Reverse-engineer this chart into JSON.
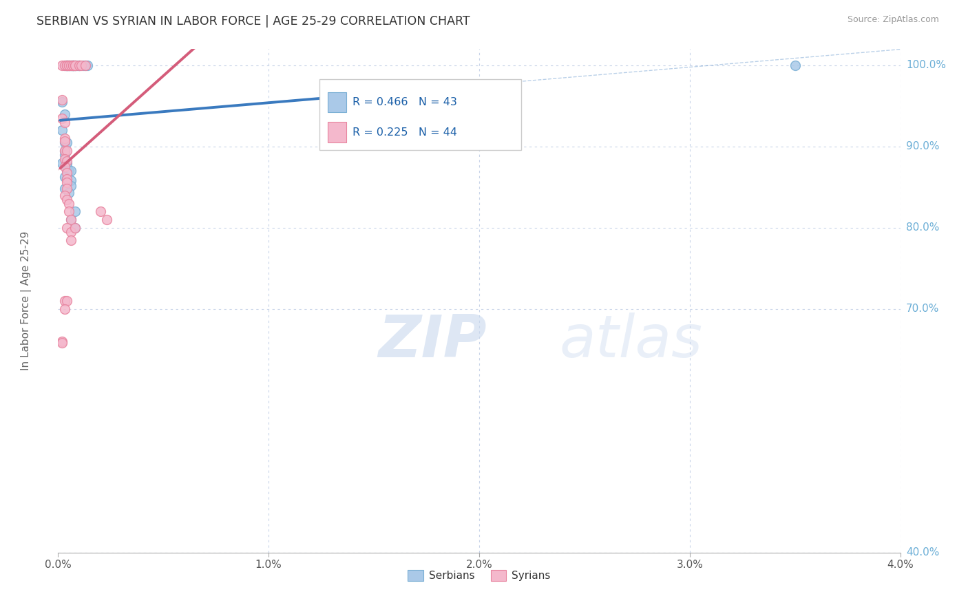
{
  "title": "SERBIAN VS SYRIAN IN LABOR FORCE | AGE 25-29 CORRELATION CHART",
  "ylabel": "In Labor Force | Age 25-29",
  "source": "Source: ZipAtlas.com",
  "xlim": [
    0.0,
    0.04
  ],
  "ylim": [
    0.4,
    1.02
  ],
  "xticks": [
    0.0,
    0.01,
    0.02,
    0.03,
    0.04
  ],
  "xtick_labels": [
    "0.0%",
    "1.0%",
    "2.0%",
    "3.0%",
    "4.0%"
  ],
  "ytick_labels_right": [
    "100.0%",
    "90.0%",
    "80.0%",
    "70.0%",
    "40.0%"
  ],
  "ytick_vals_right": [
    1.0,
    0.9,
    0.8,
    0.7,
    0.4
  ],
  "legend_blue_r": "R = 0.466",
  "legend_blue_n": "N = 43",
  "legend_pink_r": "R = 0.225",
  "legend_pink_n": "N = 44",
  "legend_label_blue": "Serbians",
  "legend_label_pink": "Syrians",
  "blue_color": "#aac9e8",
  "blue_edge_color": "#7aafd4",
  "pink_color": "#f4b8cc",
  "pink_edge_color": "#e8849f",
  "blue_line_color": "#3a7abf",
  "pink_line_color": "#d45c7a",
  "blue_scatter": [
    [
      0.0003,
      1.0
    ],
    [
      0.0004,
      1.0
    ],
    [
      0.0004,
      1.0
    ],
    [
      0.0004,
      1.0
    ],
    [
      0.0005,
      1.0
    ],
    [
      0.0005,
      1.0
    ],
    [
      0.0006,
      1.0
    ],
    [
      0.0006,
      1.0
    ],
    [
      0.0007,
      1.0
    ],
    [
      0.0007,
      1.0
    ],
    [
      0.0007,
      1.0
    ],
    [
      0.0007,
      1.0
    ],
    [
      0.0008,
      1.0
    ],
    [
      0.0008,
      1.0
    ],
    [
      0.0009,
      1.0
    ],
    [
      0.001,
      1.0
    ],
    [
      0.001,
      1.0
    ],
    [
      0.0012,
      1.0
    ],
    [
      0.0013,
      1.0
    ],
    [
      0.0014,
      1.0
    ],
    [
      0.0002,
      0.955
    ],
    [
      0.0003,
      0.94
    ],
    [
      0.0002,
      0.92
    ],
    [
      0.0003,
      0.905
    ],
    [
      0.0004,
      0.905
    ],
    [
      0.0003,
      0.895
    ],
    [
      0.0003,
      0.89
    ],
    [
      0.0002,
      0.88
    ],
    [
      0.0004,
      0.88
    ],
    [
      0.0004,
      0.875
    ],
    [
      0.0004,
      0.87
    ],
    [
      0.0005,
      0.87
    ],
    [
      0.0006,
      0.87
    ],
    [
      0.0003,
      0.863
    ],
    [
      0.0004,
      0.86
    ],
    [
      0.0006,
      0.858
    ],
    [
      0.0006,
      0.852
    ],
    [
      0.0003,
      0.848
    ],
    [
      0.0005,
      0.843
    ],
    [
      0.0008,
      0.82
    ],
    [
      0.0006,
      0.81
    ],
    [
      0.0008,
      0.8
    ],
    [
      0.035,
      1.0
    ]
  ],
  "pink_scatter": [
    [
      0.0002,
      1.0
    ],
    [
      0.0003,
      1.0
    ],
    [
      0.0004,
      1.0
    ],
    [
      0.0004,
      1.0
    ],
    [
      0.0005,
      1.0
    ],
    [
      0.0005,
      1.0
    ],
    [
      0.0006,
      1.0
    ],
    [
      0.0007,
      1.0
    ],
    [
      0.0007,
      1.0
    ],
    [
      0.0008,
      1.0
    ],
    [
      0.0008,
      1.0
    ],
    [
      0.001,
      1.0
    ],
    [
      0.0011,
      1.0
    ],
    [
      0.0013,
      1.0
    ],
    [
      0.0002,
      0.958
    ],
    [
      0.0002,
      0.935
    ],
    [
      0.0003,
      0.93
    ],
    [
      0.0003,
      0.91
    ],
    [
      0.0003,
      0.907
    ],
    [
      0.0003,
      0.895
    ],
    [
      0.0004,
      0.895
    ],
    [
      0.0003,
      0.885
    ],
    [
      0.0004,
      0.882
    ],
    [
      0.0003,
      0.875
    ],
    [
      0.0004,
      0.868
    ],
    [
      0.0004,
      0.86
    ],
    [
      0.0004,
      0.856
    ],
    [
      0.0004,
      0.848
    ],
    [
      0.0003,
      0.84
    ],
    [
      0.0004,
      0.835
    ],
    [
      0.0005,
      0.83
    ],
    [
      0.0005,
      0.82
    ],
    [
      0.0006,
      0.81
    ],
    [
      0.0004,
      0.8
    ],
    [
      0.0006,
      0.795
    ],
    [
      0.0006,
      0.785
    ],
    [
      0.0008,
      0.8
    ],
    [
      0.0003,
      0.71
    ],
    [
      0.0004,
      0.71
    ],
    [
      0.0003,
      0.7
    ],
    [
      0.0002,
      0.66
    ],
    [
      0.0002,
      0.658
    ],
    [
      0.002,
      0.82
    ],
    [
      0.0023,
      0.81
    ]
  ],
  "background_color": "#ffffff",
  "grid_color": "#c8d4e8",
  "title_color": "#333333",
  "axis_label_color": "#666666",
  "right_label_color": "#6baed6",
  "watermark_color": "#dce8f4"
}
